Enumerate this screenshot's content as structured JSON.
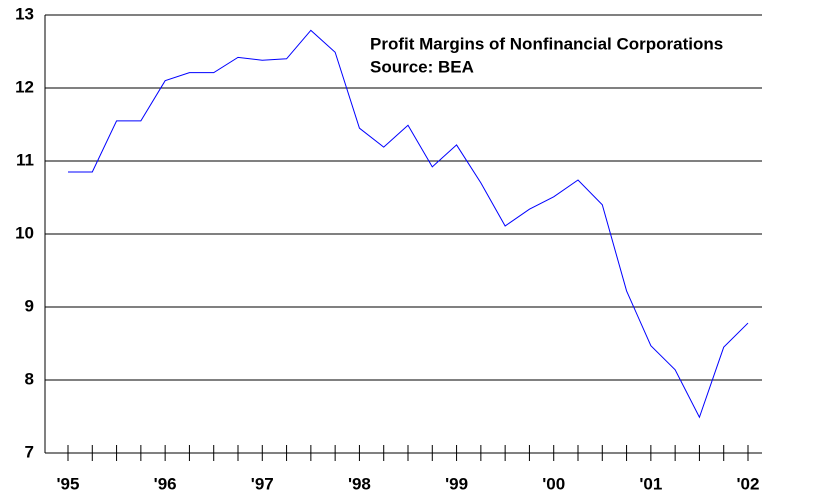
{
  "chart_data": {
    "type": "line",
    "title": "Profit Margins of Nonfinancial Corporations",
    "subtitle": "Source: BEA",
    "categories": [
      "'95",
      null,
      null,
      null,
      "'96",
      null,
      null,
      null,
      "'97",
      null,
      null,
      null,
      "'98",
      null,
      null,
      null,
      "'99",
      null,
      null,
      null,
      "'00",
      null,
      null,
      null,
      "'01",
      null,
      null,
      null,
      "'02"
    ],
    "series": [
      {
        "name": "Profit Margins",
        "color": "#0000ff",
        "values": [
          10.85,
          10.85,
          11.55,
          11.55,
          12.1,
          12.21,
          12.21,
          12.42,
          12.38,
          12.4,
          12.79,
          12.49,
          11.45,
          11.19,
          11.49,
          10.92,
          11.22,
          10.7,
          10.11,
          10.34,
          10.51,
          10.74,
          10.4,
          9.22,
          8.47,
          8.14,
          7.49,
          8.45,
          8.78
        ]
      }
    ],
    "ylim": [
      7,
      13
    ],
    "yticks": [
      7,
      8,
      9,
      10,
      11,
      12,
      13
    ],
    "grid": true
  }
}
